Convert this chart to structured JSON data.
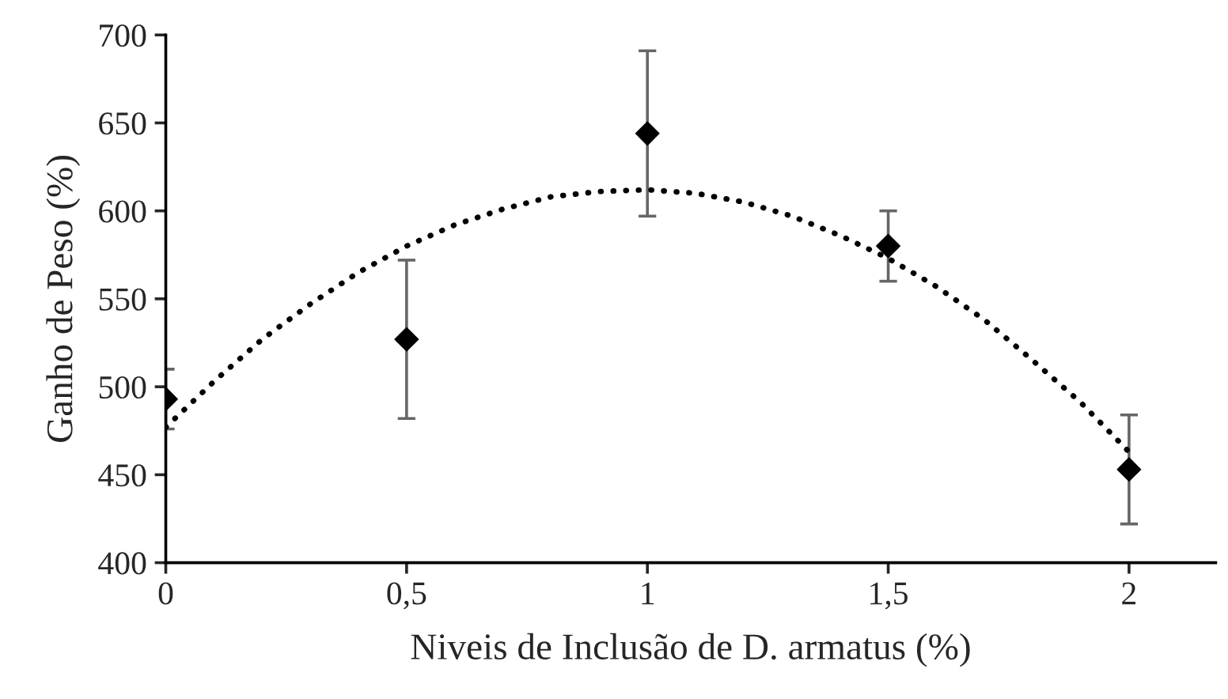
{
  "chart_data": {
    "type": "scatter",
    "xlabel": "Niveis de Inclusão de D. armatus (%)",
    "ylabel": "Ganho de Peso (%)",
    "xlim": [
      0,
      2.18
    ],
    "xticks": [
      {
        "value": 0,
        "label": "0"
      },
      {
        "value": 0.5,
        "label": "0,5"
      },
      {
        "value": 1,
        "label": "1"
      },
      {
        "value": 1.5,
        "label": "1,5"
      },
      {
        "value": 2,
        "label": "2"
      }
    ],
    "ylim": [
      400,
      700
    ],
    "yticks": [
      400,
      450,
      500,
      550,
      600,
      650,
      700
    ],
    "grid": false,
    "legend": false,
    "series": [
      {
        "color": "#000000",
        "marker": "diamond",
        "x": [
          0,
          0.5,
          1,
          1.5,
          2
        ],
        "values": [
          493,
          527,
          644,
          580,
          453
        ],
        "errors": [
          17,
          45,
          47,
          20,
          31
        ]
      },
      {
        "type": "line",
        "color": "#000000",
        "line_style": "dotted",
        "marker": "none",
        "x": [
          0,
          0.1,
          0.2,
          0.3,
          0.4,
          0.5,
          0.6,
          0.7,
          0.8,
          0.9,
          1.0,
          1.1,
          1.2,
          1.3,
          1.4,
          1.5,
          1.6,
          1.7,
          1.8,
          1.9,
          2.0
        ],
        "values": [
          477,
          503,
          527,
          547,
          565,
          580,
          592,
          601,
          608,
          611,
          612,
          610,
          605,
          597,
          586,
          573,
          557,
          538,
          515,
          491,
          463
        ]
      }
    ]
  }
}
